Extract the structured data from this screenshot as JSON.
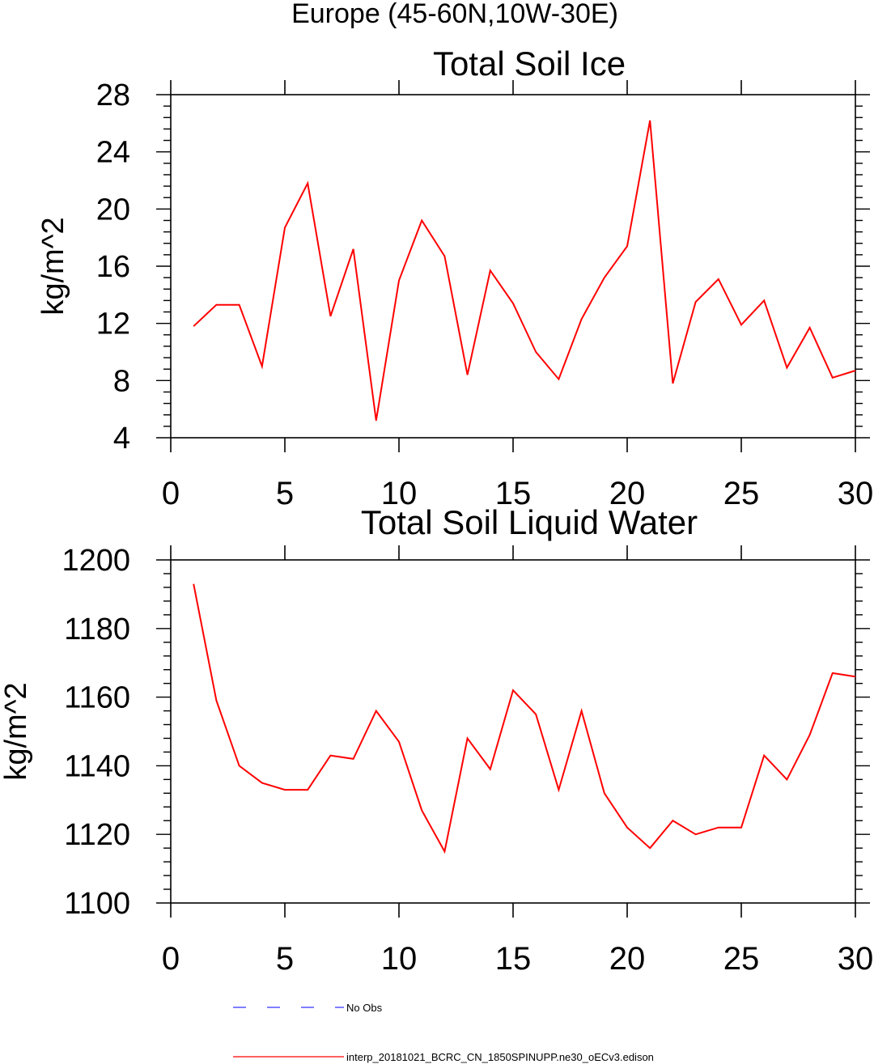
{
  "main_title": "Europe (45-60N,10W-30E)",
  "legend": [
    {
      "label": "No Obs",
      "style": "dashed",
      "color": "#3333ff"
    },
    {
      "label": "interp_20181021_BCRC_CN_1850SPINUPP.ne30_oECv3.edison",
      "style": "solid",
      "color": "#ff0000"
    }
  ],
  "chart_data": [
    {
      "type": "line",
      "title": "Total Soil Ice",
      "xlabel": "",
      "ylabel": "kg/m^2",
      "xlim": [
        0,
        30
      ],
      "ylim": [
        4,
        28
      ],
      "x_ticks": [
        "0",
        "5",
        "10",
        "15",
        "20",
        "25",
        "30"
      ],
      "y_ticks": [
        "4",
        "8",
        "12",
        "16",
        "20",
        "24",
        "28"
      ],
      "series": [
        {
          "name": "interp_20181021_BCRC_CN_1850SPINUPP.ne30_oECv3.edison",
          "color": "#ff0000",
          "x": [
            1,
            2,
            3,
            4,
            5,
            6,
            7,
            8,
            9,
            10,
            11,
            12,
            13,
            14,
            15,
            16,
            17,
            18,
            19,
            20,
            21,
            22,
            23,
            24,
            25,
            26,
            27,
            28,
            29,
            30
          ],
          "values": [
            11.8,
            13.3,
            13.3,
            9.0,
            18.7,
            21.8,
            12.5,
            17.2,
            5.2,
            15.0,
            19.2,
            16.7,
            8.4,
            15.7,
            13.4,
            10.0,
            8.1,
            12.3,
            15.2,
            17.4,
            26.2,
            7.8,
            13.5,
            15.1,
            11.9,
            13.6,
            8.9,
            11.7,
            8.2,
            8.7
          ]
        }
      ]
    },
    {
      "type": "line",
      "title": "Total Soil Liquid Water",
      "xlabel": "",
      "ylabel": "kg/m^2",
      "xlim": [
        0,
        30
      ],
      "ylim": [
        1100,
        1200
      ],
      "x_ticks": [
        "0",
        "5",
        "10",
        "15",
        "20",
        "25",
        "30"
      ],
      "y_ticks": [
        "1100",
        "1120",
        "1140",
        "1160",
        "1180",
        "1200"
      ],
      "series": [
        {
          "name": "interp_20181021_BCRC_CN_1850SPINUPP.ne30_oECv3.edison",
          "color": "#ff0000",
          "x": [
            1,
            2,
            3,
            4,
            5,
            6,
            7,
            8,
            9,
            10,
            11,
            12,
            13,
            14,
            15,
            16,
            17,
            18,
            19,
            20,
            21,
            22,
            23,
            24,
            25,
            26,
            27,
            28,
            29,
            30
          ],
          "values": [
            1193,
            1159,
            1140,
            1135,
            1133,
            1133,
            1143,
            1142,
            1156,
            1147,
            1127,
            1115,
            1148,
            1139,
            1162,
            1155,
            1133,
            1156,
            1132,
            1122,
            1116,
            1124,
            1120,
            1122,
            1122,
            1143,
            1136,
            1149,
            1167,
            1166
          ]
        }
      ]
    }
  ]
}
